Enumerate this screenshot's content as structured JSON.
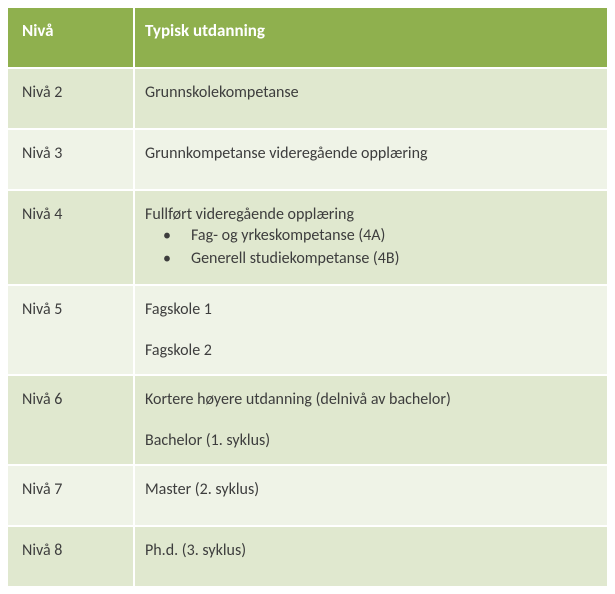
{
  "colors": {
    "header_bg": "#8fb04e",
    "header_text": "#ffffff",
    "row_bg_a": "#e0e8cf",
    "row_bg_b": "#eff3e7",
    "body_text": "#3d3d3d"
  },
  "header": {
    "level": "Nivå",
    "desc": "Typisk utdanning"
  },
  "rows": [
    {
      "band": "a",
      "level": "Nivå 2",
      "pad": true,
      "lines": [
        {
          "type": "line",
          "text": "Grunnskolekompetanse"
        }
      ]
    },
    {
      "band": "b",
      "level": "Nivå 3",
      "pad": true,
      "lines": [
        {
          "type": "line",
          "text": "Grunnkompetanse videregående opplæring"
        }
      ]
    },
    {
      "band": "a",
      "level": "Nivå 4",
      "pad": false,
      "lines": [
        {
          "type": "line",
          "text": "Fullført videregående opplæring"
        },
        {
          "type": "sub",
          "text": "Fag- og yrkeskompetanse (4A)"
        },
        {
          "type": "sub",
          "text": "Generell studiekompetanse (4B)"
        }
      ]
    },
    {
      "band": "b",
      "level": "Nivå 5",
      "pad": false,
      "lines": [
        {
          "type": "line",
          "text": "Fagskole 1"
        },
        {
          "type": "gap"
        },
        {
          "type": "line",
          "text": "Fagskole 2"
        }
      ]
    },
    {
      "band": "a",
      "level": "Nivå 6",
      "pad": false,
      "lines": [
        {
          "type": "line",
          "text": "Kortere høyere utdanning (delnivå av bachelor)"
        },
        {
          "type": "gap"
        },
        {
          "type": "line",
          "text": "Bachelor (1. syklus)"
        }
      ]
    },
    {
      "band": "b",
      "level": "Nivå 7",
      "pad": true,
      "lines": [
        {
          "type": "line",
          "text": "Master (2. syklus)"
        }
      ]
    },
    {
      "band": "a",
      "level": "Nivå 8",
      "pad": true,
      "lines": [
        {
          "type": "line",
          "text": "Ph.d. (3. syklus)"
        }
      ]
    }
  ]
}
